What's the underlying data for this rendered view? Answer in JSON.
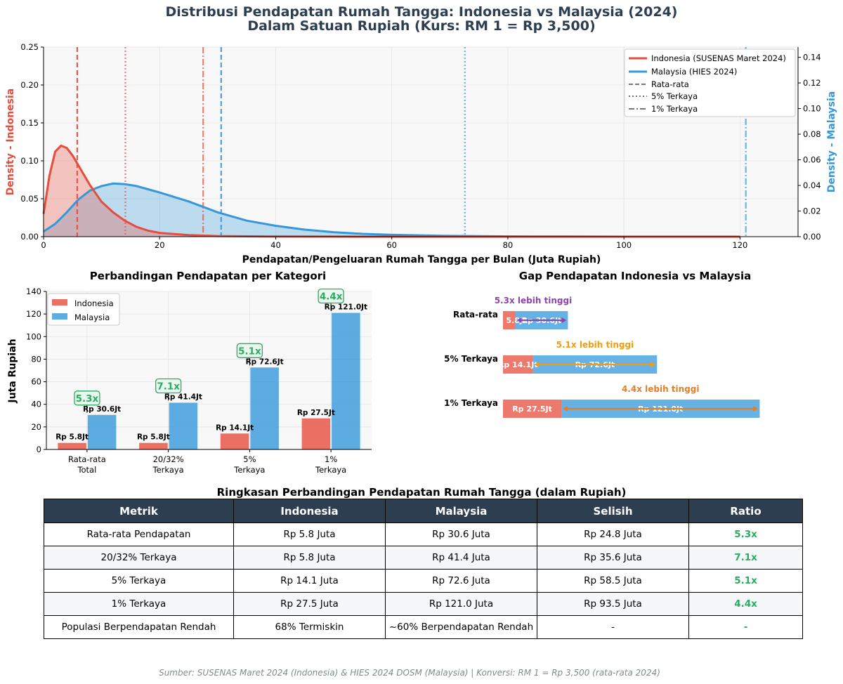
{
  "title_line1": "Distribusi Pendapatan Rumah Tangga: Indonesia vs Malaysia (2024)",
  "title_line2": "Dalam Satuan Rupiah (Kurs: RM 1 = Rp 3,500)",
  "colors": {
    "indonesia": "#e74c3c",
    "malaysia": "#3498db",
    "ratio": "#27ae60",
    "header": "#2c3e50",
    "note_purple": "#8e44ad",
    "note_orange": "#f39c12",
    "note_orange2": "#e67e22"
  },
  "chart_data": [
    {
      "type": "area",
      "title": "",
      "xlabel": "Pendapatan/Pengeluaran Rumah Tangga per Bulan (Juta Rupiah)",
      "ylabel_left": "Density - Indonesia",
      "ylabel_right": "Density - Malaysia",
      "xlim": [
        0,
        130
      ],
      "ylim_left": [
        0,
        0.25
      ],
      "ylim_right": [
        0,
        0.148
      ],
      "x_ticks": [
        "0",
        "20",
        "40",
        "60",
        "80",
        "100",
        "120"
      ],
      "y_ticks_left": [
        "0.00",
        "0.05",
        "0.10",
        "0.15",
        "0.20",
        "0.25"
      ],
      "y_ticks_right": [
        "0.00",
        "0.02",
        "0.04",
        "0.06",
        "0.08",
        "0.10",
        "0.12",
        "0.14"
      ],
      "legend": [
        "Indonesia (SUSENAS Maret 2024)",
        "Malaysia (HIES 2024)",
        "Rata-rata",
        "5% Terkaya",
        "1% Terkaya"
      ],
      "series": [
        {
          "name": "Indonesia (SUSENAS Maret 2024)",
          "axis": "left",
          "x": [
            0,
            1,
            2,
            3,
            4,
            5,
            6,
            8,
            10,
            12,
            14,
            16,
            18,
            20,
            25,
            30,
            40,
            50,
            60,
            70,
            80,
            100,
            120
          ],
          "y": [
            0.03,
            0.08,
            0.112,
            0.12,
            0.117,
            0.107,
            0.094,
            0.068,
            0.046,
            0.032,
            0.021,
            0.013,
            0.008,
            0.005,
            0.002,
            0.0008,
            0.0002,
            0.0001,
            0,
            0,
            0,
            0,
            0
          ]
        },
        {
          "name": "Malaysia (HIES 2024)",
          "axis": "right",
          "x": [
            0,
            2,
            4,
            6,
            8,
            10,
            12,
            14,
            16,
            18,
            20,
            25,
            30,
            35,
            40,
            45,
            50,
            55,
            60,
            70,
            80,
            90,
            100,
            110,
            120
          ],
          "y": [
            0.004,
            0.01,
            0.019,
            0.029,
            0.036,
            0.0395,
            0.0415,
            0.041,
            0.0395,
            0.037,
            0.0345,
            0.0275,
            0.019,
            0.0125,
            0.0085,
            0.0055,
            0.0035,
            0.0022,
            0.0014,
            0.0006,
            0.0002,
            0.0001,
            0,
            0,
            0
          ]
        }
      ],
      "vlines": [
        {
          "country": "indonesia",
          "kind": "Rata-rata",
          "x": 5.8
        },
        {
          "country": "indonesia",
          "kind": "5% Terkaya",
          "x": 14.1
        },
        {
          "country": "indonesia",
          "kind": "1% Terkaya",
          "x": 27.5
        },
        {
          "country": "malaysia",
          "kind": "Rata-rata",
          "x": 30.6
        },
        {
          "country": "malaysia",
          "kind": "5% Terkaya",
          "x": 72.6
        },
        {
          "country": "malaysia",
          "kind": "1% Terkaya",
          "x": 121.0
        }
      ]
    },
    {
      "type": "bar",
      "title": "Perbandingan Pendapatan per Kategori",
      "ylabel": "Juta Rupiah",
      "ylim": [
        0,
        140
      ],
      "y_ticks": [
        "0",
        "20",
        "40",
        "60",
        "80",
        "100",
        "120",
        "140"
      ],
      "categories": [
        [
          "Rata-rata",
          "Total"
        ],
        [
          "20/32%",
          "Terkaya"
        ],
        [
          "5%",
          "Terkaya"
        ],
        [
          "1%",
          "Terkaya"
        ]
      ],
      "series": [
        {
          "name": "Indonesia",
          "values": [
            5.8,
            5.8,
            14.1,
            27.5
          ],
          "labels": [
            "Rp 5.8Jt",
            "Rp 5.8Jt",
            "Rp 14.1Jt",
            "Rp 27.5Jt"
          ]
        },
        {
          "name": "Malaysia",
          "values": [
            30.6,
            41.4,
            72.6,
            121.0
          ],
          "labels": [
            "Rp 30.6Jt",
            "Rp 41.4Jt",
            "Rp 72.6Jt",
            "Rp 121.0Jt"
          ]
        }
      ],
      "ratios": [
        "5.3x",
        "7.1x",
        "5.1x",
        "4.4x"
      ]
    },
    {
      "type": "bar",
      "orientation": "horizontal",
      "title": "Gap Pendapatan Indonesia vs Malaysia",
      "categories": [
        "Rata-rata",
        "5% Terkaya",
        "1% Terkaya"
      ],
      "xlim": [
        0,
        140
      ],
      "series": [
        {
          "name": "Indonesia",
          "values": [
            5.8,
            14.1,
            27.5
          ],
          "labels": [
            "Rp 5.8Jt",
            "Rp 14.1Jt",
            "Rp 27.5Jt"
          ]
        },
        {
          "name": "Malaysia",
          "values": [
            30.6,
            72.6,
            121.0
          ],
          "labels": [
            "Rp 30.6Jt",
            "Rp 72.6Jt",
            "Rp 121.0Jt"
          ]
        }
      ],
      "notes": [
        "5.3x lebih tinggi",
        "5.1x lebih tinggi",
        "4.4x lebih tinggi"
      ],
      "note_colors": [
        "#8e44ad",
        "#f39c12",
        "#e67e22"
      ]
    }
  ],
  "table": {
    "title": "Ringkasan Perbandingan Pendapatan Rumah Tangga (dalam Rupiah)",
    "headers": [
      "Metrik",
      "Indonesia",
      "Malaysia",
      "Selisih",
      "Ratio"
    ],
    "rows": [
      [
        "Rata-rata Pendapatan",
        "Rp 5.8 Juta",
        "Rp 30.6 Juta",
        "Rp 24.8 Juta",
        "5.3x"
      ],
      [
        "20/32% Terkaya",
        "Rp 5.8 Juta",
        "Rp 41.4 Juta",
        "Rp 35.6 Juta",
        "7.1x"
      ],
      [
        "5% Terkaya",
        "Rp 14.1 Juta",
        "Rp 72.6 Juta",
        "Rp 58.5 Juta",
        "5.1x"
      ],
      [
        "1% Terkaya",
        "Rp 27.5 Juta",
        "Rp 121.0 Juta",
        "Rp 93.5 Juta",
        "4.4x"
      ],
      [
        "Populasi Berpendapatan Rendah",
        "68% Termiskin",
        "~60% Berpendapatan Rendah",
        "-",
        "-"
      ]
    ]
  },
  "source": "Sumber: SUSENAS Maret 2024 (Indonesia) & HIES 2024 DOSM (Malaysia) | Konversi: RM 1 = Rp 3,500 (rata-rata 2024)"
}
